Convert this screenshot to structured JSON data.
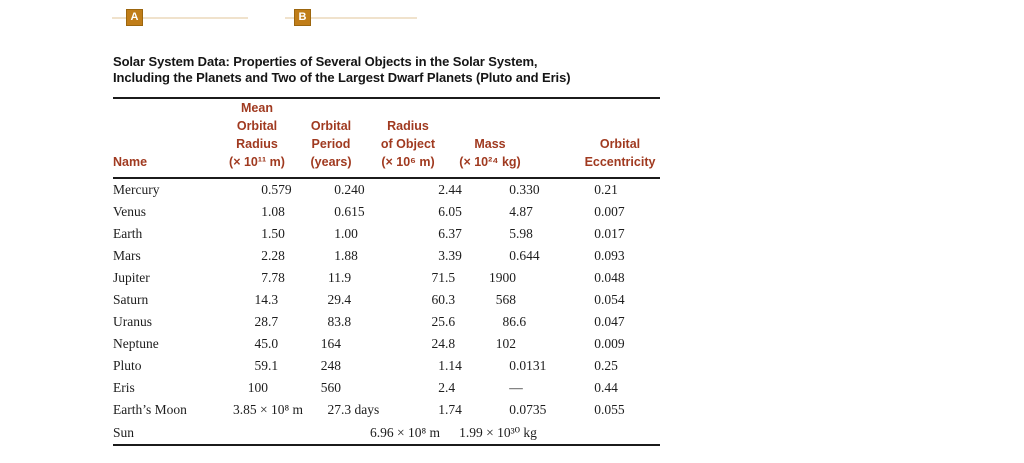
{
  "markers": [
    {
      "label": "A"
    },
    {
      "label": "B"
    }
  ],
  "title": "Solar System Data: Properties of Several Objects in the Solar System,\nIncluding the Planets and Two of the Largest Dwarf Planets (Pluto and Eris)",
  "table": {
    "headers": {
      "name": "Name",
      "cols": [
        "Mean\nOrbital\nRadius\n(× 10¹¹ m)",
        "Orbital\nPeriod\n(years)",
        "Radius\nof Object\n(× 10⁶ m)",
        "Mass\n(× 10²⁴ kg)",
        "Orbital\nEccentricity"
      ]
    },
    "rows": [
      {
        "name": "Mercury",
        "values": [
          "0.579",
          "0.240",
          "2.44",
          "0.330",
          "0.21"
        ]
      },
      {
        "name": "Venus",
        "values": [
          "1.08",
          "0.615",
          "6.05",
          "4.87",
          "0.007"
        ]
      },
      {
        "name": "Earth",
        "values": [
          "1.50",
          "1.00",
          "6.37",
          "5.98",
          "0.017"
        ]
      },
      {
        "name": "Mars",
        "values": [
          "2.28",
          "1.88",
          "3.39",
          "0.644",
          "0.093"
        ]
      },
      {
        "name": "Jupiter",
        "values": [
          "7.78",
          "11.9",
          "71.5",
          "1900",
          "0.048"
        ]
      },
      {
        "name": "Saturn",
        "values": [
          "14.3",
          "29.4",
          "60.3",
          "568",
          "0.054"
        ]
      },
      {
        "name": "Uranus",
        "values": [
          "28.7",
          "83.8",
          "25.6",
          "86.6",
          "0.047"
        ]
      },
      {
        "name": "Neptune",
        "values": [
          "45.0",
          "164",
          "24.8",
          "102",
          "0.009"
        ]
      },
      {
        "name": "Pluto",
        "values": [
          "59.1",
          "248",
          "1.14",
          "0.0131",
          "0.25"
        ]
      },
      {
        "name": "Eris",
        "values": [
          "100",
          "560",
          "2.4",
          "—",
          "0.44"
        ]
      },
      {
        "name": "Earth’s Moon",
        "values": [
          "3.85 × 10⁸ m",
          "27.3 days",
          "1.74",
          "0.0735",
          "0.055"
        ]
      },
      {
        "name": "Sun",
        "values": [
          "",
          "",
          "6.96 × 10⁸ m",
          "1.99 × 10³⁰ kg",
          ""
        ]
      }
    ]
  },
  "colors": {
    "header_text": "#a03a20",
    "body_text": "#1d1d1d",
    "title_text": "#151515",
    "rule": "#1b1b1b",
    "marker_fill": "#c07d18",
    "marker_border": "#9c660e",
    "marker_line": "#f0e2cc"
  }
}
